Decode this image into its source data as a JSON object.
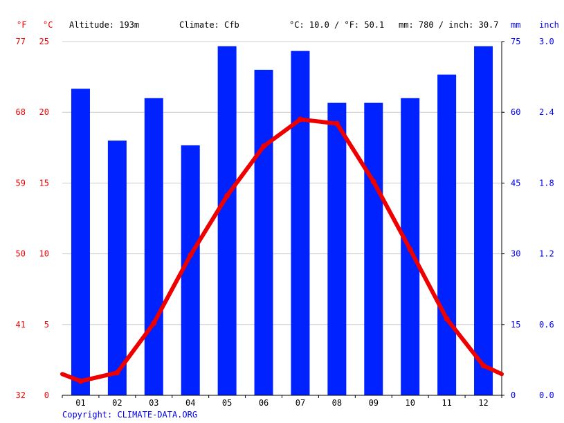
{
  "header": {
    "unit_f": "°F",
    "unit_c": "°C",
    "altitude": "Altitude: 193m",
    "climate": "Climate: Cfb",
    "temp_avg": "°C: 10.0 / °F: 50.1",
    "precip_total": "mm: 780 / inch: 30.7",
    "unit_mm": "mm",
    "unit_inch": "inch"
  },
  "copyright": "Copyright: CLIMATE-DATA.ORG",
  "colors": {
    "temperature": "#ee0000",
    "precipitation": "#0022ff",
    "grid": "#cccccc"
  },
  "chart_data": {
    "type": "bar+line",
    "categories": [
      "01",
      "02",
      "03",
      "04",
      "05",
      "06",
      "07",
      "08",
      "09",
      "10",
      "11",
      "12"
    ],
    "series": [
      {
        "name": "",
        "type": "bar",
        "axis": "right",
        "unit": "mm",
        "values": [
          65,
          54,
          63,
          53,
          74,
          69,
          73,
          62,
          62,
          63,
          68,
          74
        ]
      },
      {
        "name": "",
        "type": "line",
        "axis": "left",
        "unit": "°C",
        "values": [
          1.0,
          1.6,
          5.1,
          9.9,
          14.1,
          17.6,
          19.5,
          19.2,
          15.1,
          10.3,
          5.4,
          2.1
        ]
      }
    ],
    "line_edge_values": {
      "start": 1.5,
      "end": 1.5
    },
    "left_axis_c": {
      "ticks": [
        "0",
        "5",
        "10",
        "15",
        "20",
        "25"
      ],
      "min": 0,
      "max": 25
    },
    "left_axis_f": {
      "ticks": [
        "32",
        "41",
        "50",
        "59",
        "68",
        "77"
      ]
    },
    "right_axis_mm": {
      "ticks": [
        "0",
        "15",
        "30",
        "45",
        "60",
        "75"
      ],
      "min": 0,
      "max": 75
    },
    "right_axis_inch": {
      "ticks": [
        "0.0",
        "0.6",
        "1.2",
        "1.8",
        "2.4",
        "3.0"
      ]
    },
    "grid": true
  }
}
